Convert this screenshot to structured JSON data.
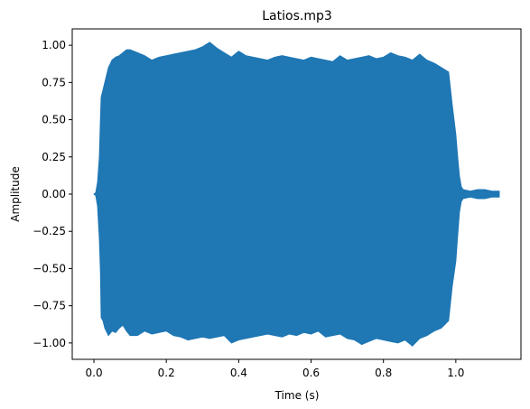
{
  "chart_data": {
    "type": "line",
    "title": "Latios.mp3",
    "xlabel": "Time (s)",
    "ylabel": "Amplitude",
    "xlim": [
      -0.06,
      1.18
    ],
    "ylim": [
      -1.11,
      1.11
    ],
    "xticks": [
      0.0,
      0.2,
      0.4,
      0.6,
      0.8,
      1.0
    ],
    "xtick_labels": [
      "0.0",
      "0.2",
      "0.4",
      "0.6",
      "0.8",
      "1.0"
    ],
    "yticks": [
      -1.0,
      -0.75,
      -0.5,
      -0.25,
      0.0,
      0.25,
      0.5,
      0.75,
      1.0
    ],
    "ytick_labels": [
      "−1.00",
      "−0.75",
      "−0.50",
      "−0.25",
      "0.00",
      "0.25",
      "0.50",
      "0.75",
      "1.00"
    ],
    "grid": false,
    "legend": "none",
    "series": [
      {
        "color": "#1f77b4",
        "x": [
          0.0,
          0.005,
          0.01,
          0.015,
          0.018,
          0.02,
          0.025,
          0.03,
          0.04,
          0.05,
          0.06,
          0.07,
          0.08,
          0.09,
          0.1,
          0.12,
          0.14,
          0.16,
          0.18,
          0.2,
          0.22,
          0.24,
          0.26,
          0.28,
          0.3,
          0.32,
          0.34,
          0.36,
          0.38,
          0.4,
          0.42,
          0.44,
          0.46,
          0.48,
          0.5,
          0.52,
          0.54,
          0.56,
          0.58,
          0.6,
          0.62,
          0.64,
          0.66,
          0.68,
          0.7,
          0.72,
          0.74,
          0.76,
          0.78,
          0.8,
          0.82,
          0.84,
          0.86,
          0.88,
          0.9,
          0.92,
          0.94,
          0.96,
          0.98,
          0.99,
          1.0,
          1.005,
          1.01,
          1.015,
          1.02,
          1.04,
          1.06,
          1.08,
          1.1,
          1.12
        ],
        "upper": [
          0.0,
          0.01,
          0.08,
          0.25,
          0.5,
          0.65,
          0.7,
          0.75,
          0.85,
          0.9,
          0.92,
          0.93,
          0.95,
          0.97,
          0.97,
          0.95,
          0.93,
          0.9,
          0.92,
          0.93,
          0.94,
          0.95,
          0.96,
          0.97,
          0.99,
          1.02,
          0.98,
          0.95,
          0.92,
          0.96,
          0.93,
          0.92,
          0.91,
          0.9,
          0.92,
          0.93,
          0.92,
          0.91,
          0.9,
          0.92,
          0.91,
          0.9,
          0.89,
          0.93,
          0.9,
          0.91,
          0.92,
          0.93,
          0.91,
          0.92,
          0.95,
          0.93,
          0.92,
          0.9,
          0.94,
          0.9,
          0.88,
          0.85,
          0.82,
          0.6,
          0.4,
          0.25,
          0.12,
          0.05,
          0.03,
          0.02,
          0.03,
          0.03,
          0.02,
          0.02
        ],
        "lower": [
          0.0,
          -0.01,
          -0.08,
          -0.3,
          -0.52,
          -0.83,
          -0.85,
          -0.9,
          -0.95,
          -0.92,
          -0.93,
          -0.9,
          -0.88,
          -0.92,
          -0.95,
          -0.95,
          -0.92,
          -0.94,
          -0.93,
          -0.92,
          -0.95,
          -0.96,
          -0.98,
          -0.97,
          -0.96,
          -0.97,
          -0.96,
          -0.95,
          -1.0,
          -0.98,
          -0.97,
          -0.96,
          -0.95,
          -0.94,
          -0.95,
          -0.96,
          -0.94,
          -0.95,
          -0.93,
          -0.94,
          -0.92,
          -0.96,
          -0.95,
          -0.94,
          -0.97,
          -0.98,
          -1.01,
          -0.99,
          -0.97,
          -0.98,
          -0.99,
          -1.0,
          -0.98,
          -1.02,
          -0.97,
          -0.95,
          -0.92,
          -0.9,
          -0.85,
          -0.62,
          -0.45,
          -0.28,
          -0.12,
          -0.05,
          -0.03,
          -0.02,
          -0.03,
          -0.03,
          -0.02,
          -0.02
        ]
      }
    ]
  }
}
